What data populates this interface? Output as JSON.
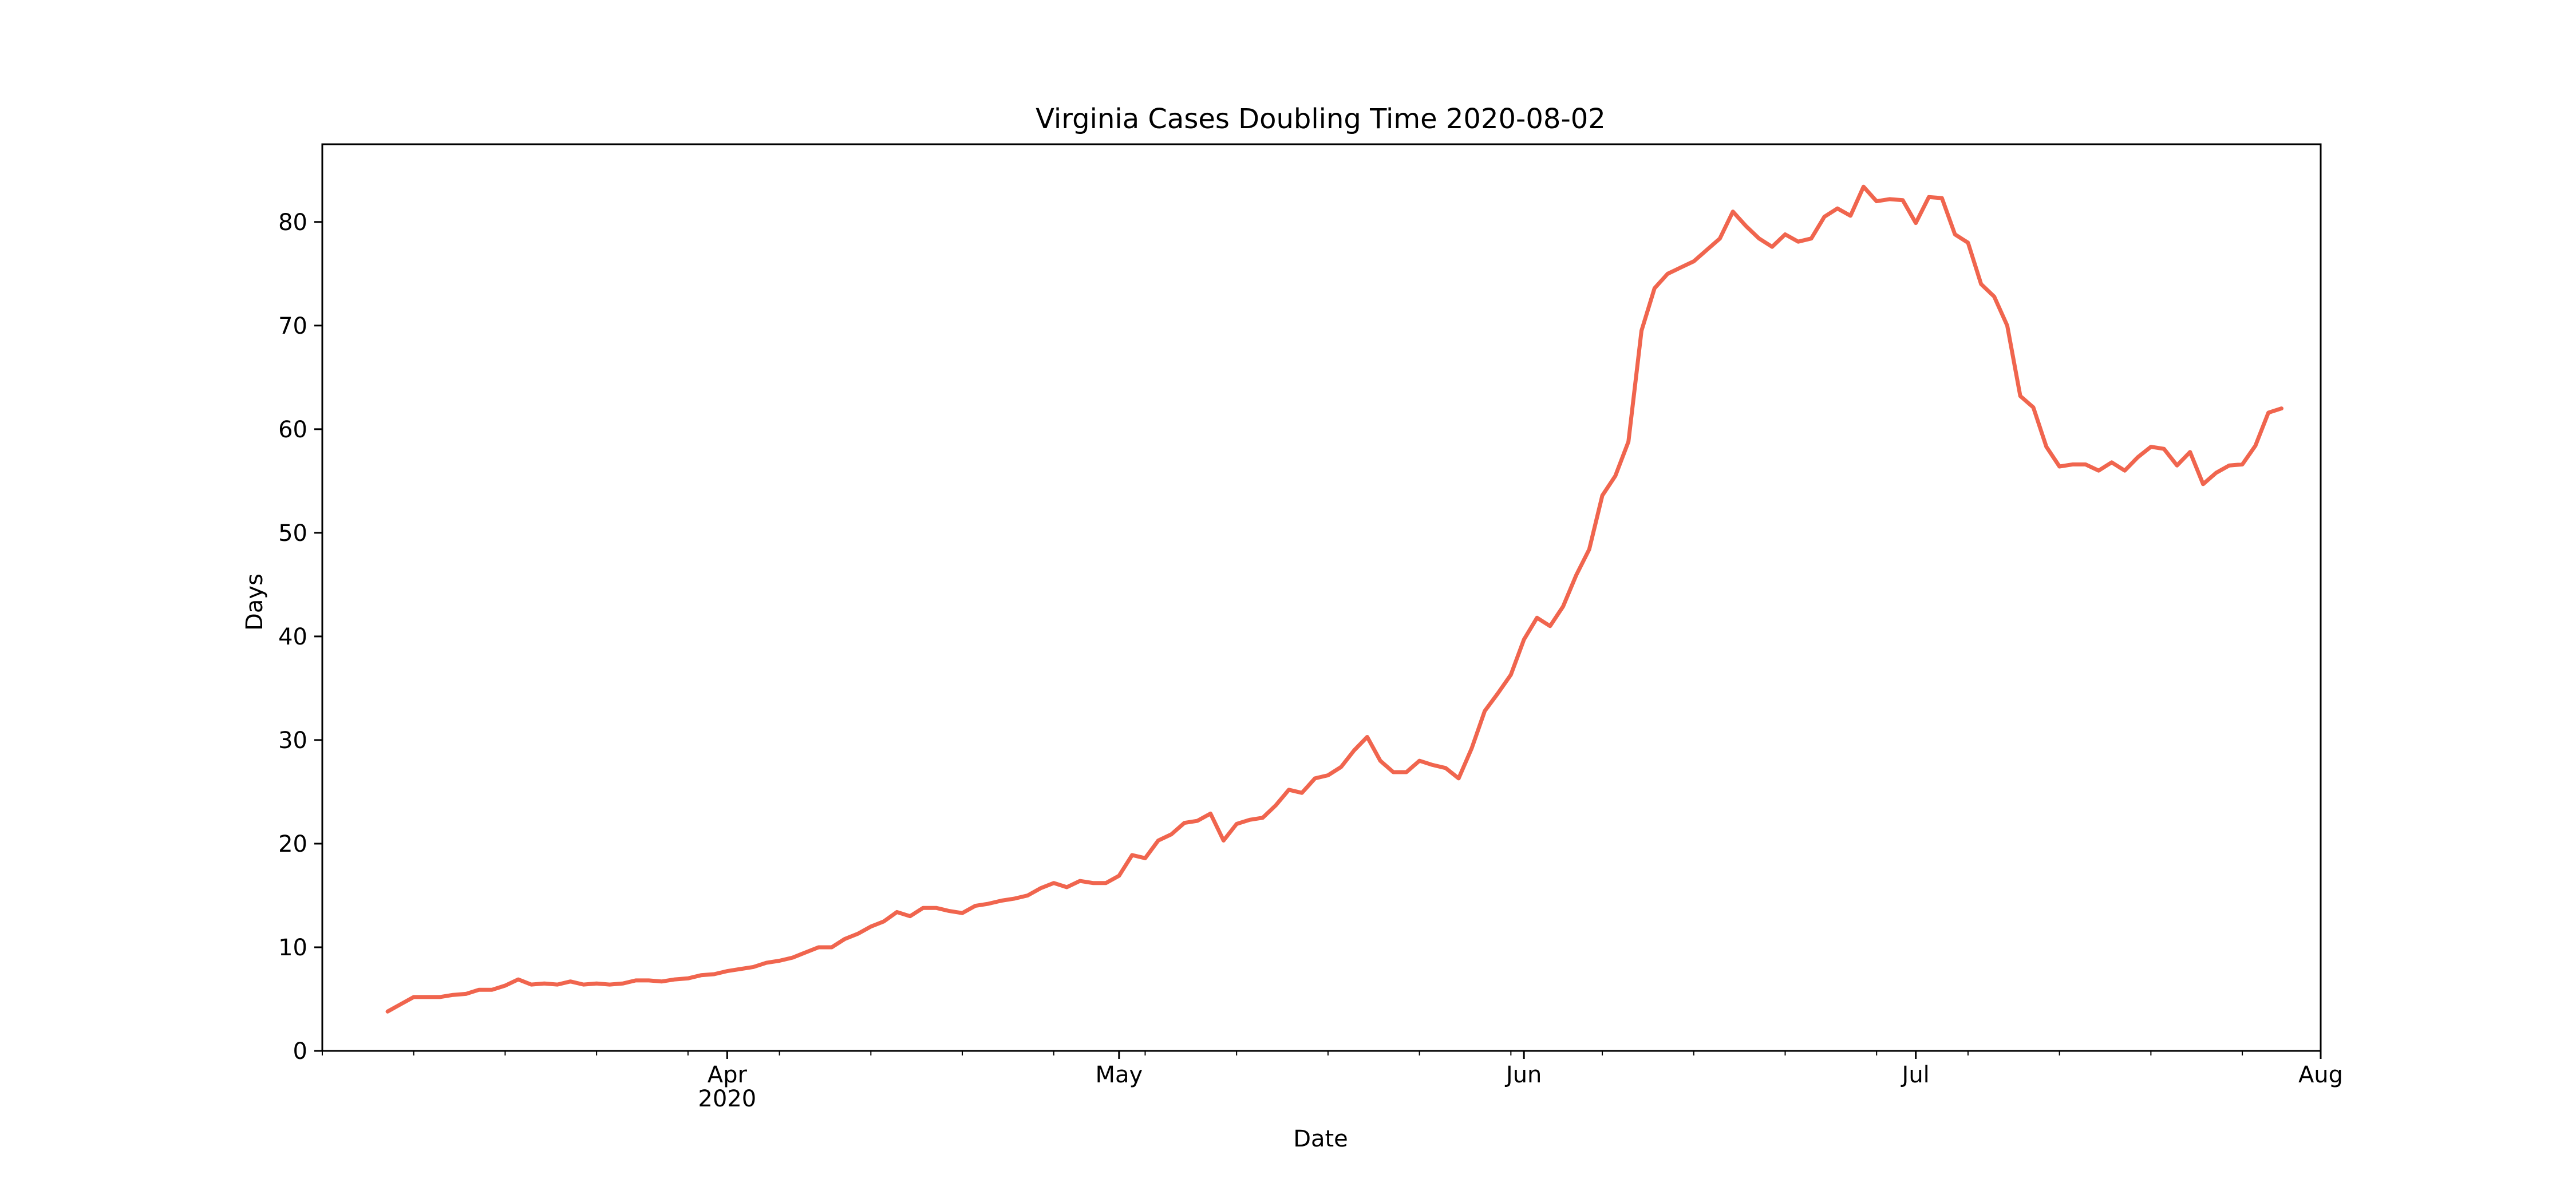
{
  "chart_data": {
    "type": "line",
    "title": "Virginia Cases Doubling Time 2020-08-02",
    "xlabel": "Date",
    "ylabel": "Days",
    "x_start": "2020-03-06",
    "x_end": "2020-08-02",
    "xlim": [
      "2020-03-01",
      "2020-08-01"
    ],
    "ylim": [
      0,
      87.5
    ],
    "y_ticks": [
      0,
      10,
      20,
      30,
      40,
      50,
      60,
      70,
      80
    ],
    "x_ticks": [
      {
        "date": "2020-04-01",
        "label": "Apr",
        "sublabel": "2020"
      },
      {
        "date": "2020-05-01",
        "label": "May",
        "sublabel": ""
      },
      {
        "date": "2020-06-01",
        "label": "Jun",
        "sublabel": ""
      },
      {
        "date": "2020-07-01",
        "label": "Jul",
        "sublabel": ""
      },
      {
        "date": "2020-08-01",
        "label": "Aug",
        "sublabel": ""
      }
    ],
    "grid": false,
    "color": "#f0654e",
    "series": [
      {
        "name": "Doubling time",
        "values": [
          3.8,
          4.5,
          5.2,
          5.2,
          5.2,
          5.4,
          5.5,
          5.9,
          5.9,
          6.3,
          6.9,
          6.4,
          6.5,
          6.4,
          6.7,
          6.4,
          6.5,
          6.4,
          6.5,
          6.8,
          6.8,
          6.7,
          6.9,
          7.0,
          7.3,
          7.4,
          7.7,
          7.9,
          8.1,
          8.5,
          8.7,
          9.0,
          9.5,
          10.0,
          10.0,
          10.8,
          11.3,
          12.0,
          12.5,
          13.4,
          13.0,
          13.8,
          13.8,
          13.5,
          13.3,
          14.0,
          14.2,
          14.5,
          14.7,
          15.0,
          15.7,
          16.2,
          15.8,
          16.4,
          16.2,
          16.2,
          16.9,
          18.9,
          18.6,
          20.3,
          20.9,
          22.0,
          22.2,
          22.9,
          20.3,
          21.9,
          22.3,
          22.5,
          23.7,
          25.2,
          24.9,
          26.3,
          26.6,
          27.4,
          29.0,
          30.3,
          28.0,
          26.9,
          26.9,
          28.0,
          27.6,
          27.3,
          26.3,
          29.2,
          32.8,
          34.5,
          36.3,
          39.7,
          41.8,
          41.0,
          42.9,
          45.9,
          48.4,
          53.6,
          55.5,
          58.8,
          69.5,
          73.6,
          75.0,
          75.6,
          76.2,
          77.3,
          78.4,
          81.0,
          79.6,
          78.4,
          77.6,
          78.8,
          78.1,
          78.4,
          80.5,
          81.3,
          80.6,
          83.4,
          82.0,
          82.2,
          82.1,
          79.9,
          82.4,
          82.3,
          78.8,
          78.0,
          74.0,
          72.8,
          70.0,
          63.2,
          62.1,
          58.3,
          56.4,
          56.6,
          56.6,
          56.0,
          56.8,
          56.0,
          57.3,
          58.3,
          58.1,
          56.5,
          57.8,
          54.7,
          55.8,
          56.5,
          56.6,
          58.4,
          61.6,
          62.0
        ]
      }
    ]
  }
}
